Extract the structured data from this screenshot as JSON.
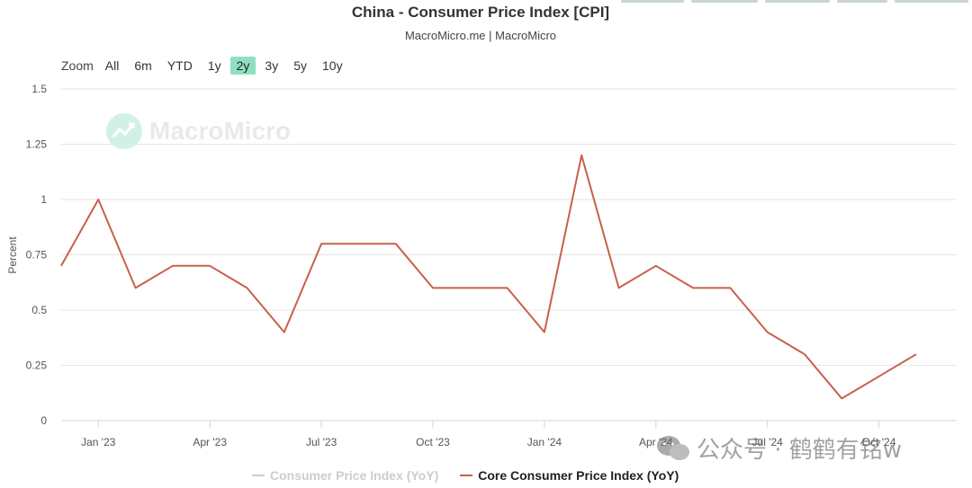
{
  "header": {
    "title": "China - Consumer Price Index [CPI]",
    "subtitle": "MacroMicro.me | MacroMicro"
  },
  "range_selector": {
    "zoom_label": "Zoom",
    "buttons": [
      "All",
      "6m",
      "YTD",
      "1y",
      "2y",
      "3y",
      "5y",
      "10y"
    ],
    "selected": "2y"
  },
  "watermark": {
    "text": "MacroMicro"
  },
  "overlay_watermark": {
    "text": "公众号 · 鹤鹤有铭w"
  },
  "legend": {
    "items": [
      {
        "label": "Consumer Price Index (YoY)",
        "active": false
      },
      {
        "label": "Core Consumer Price Index (YoY)",
        "active": true
      }
    ]
  },
  "colors": {
    "series": "#c8604a",
    "inactive": "#cccccc",
    "accent": "#8ee0c0"
  },
  "chart_data": {
    "type": "line",
    "ylabel": "Percent",
    "ylim": [
      0,
      1.5
    ],
    "y_ticks": [
      0,
      0.25,
      0.5,
      0.75,
      1,
      1.25,
      1.5
    ],
    "y_tick_labels": [
      "0",
      "0.25",
      "0.5",
      "0.75",
      "1",
      "1.25",
      "1.5"
    ],
    "x_ticks": [
      "Jan '23",
      "Apr '23",
      "Jul '23",
      "Oct '23",
      "Jan '24",
      "Apr '24",
      "Jul '24",
      "Oct '24"
    ],
    "x": [
      "2022-12",
      "2023-01",
      "2023-02",
      "2023-03",
      "2023-04",
      "2023-05",
      "2023-06",
      "2023-07",
      "2023-08",
      "2023-09",
      "2023-10",
      "2023-11",
      "2023-12",
      "2024-01",
      "2024-02",
      "2024-03",
      "2024-04",
      "2024-05",
      "2024-06",
      "2024-07",
      "2024-08",
      "2024-09",
      "2024-10",
      "2024-11"
    ],
    "series": [
      {
        "name": "Core Consumer Price Index (YoY)",
        "values": [
          0.7,
          1.0,
          0.6,
          0.7,
          0.7,
          0.6,
          0.4,
          0.8,
          0.8,
          0.8,
          0.6,
          0.6,
          0.6,
          0.4,
          1.2,
          0.6,
          0.7,
          0.6,
          0.6,
          0.4,
          0.3,
          0.1,
          0.2,
          0.3
        ]
      }
    ],
    "grid": true,
    "legend_position": "bottom"
  }
}
